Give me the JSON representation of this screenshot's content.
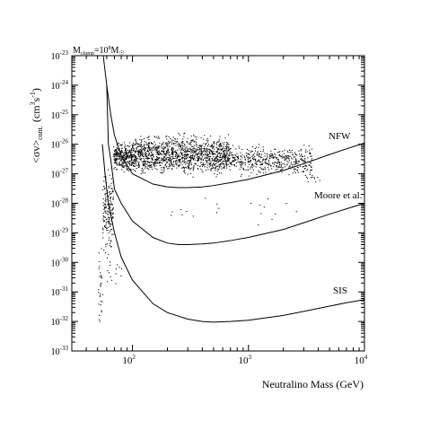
{
  "chart_data": {
    "type": "line",
    "mass_label_text": "M",
    "mass_label_sub": "clump",
    "mass_label_eq": "=10",
    "mass_label_exp": "8",
    "mass_label_unit": "M",
    "mass_label_unit_sub": "☉",
    "xlabel": "Neutralino Mass (GeV)",
    "ylabel_main": "<σv>",
    "ylabel_sub": "cont.",
    "ylabel_units": "(cm",
    "ylabel_units_exp1": "3",
    "ylabel_units_mid": "s",
    "ylabel_units_exp2": "-1",
    "ylabel_units_close": ")",
    "x_scale": "log",
    "y_scale": "log",
    "xlim": [
      30,
      10000
    ],
    "ylim": [
      1e-33,
      1e-23
    ],
    "x_ticks": [
      {
        "value": 100,
        "base": "10",
        "exp": "2"
      },
      {
        "value": 1000,
        "base": "10",
        "exp": "3"
      },
      {
        "value": 10000,
        "base": "10",
        "exp": "4"
      }
    ],
    "y_ticks": [
      {
        "value": 1e-23,
        "base": "10",
        "exp": "-23"
      },
      {
        "value": 1e-24,
        "base": "10",
        "exp": "-24"
      },
      {
        "value": 1e-25,
        "base": "10",
        "exp": "-25"
      },
      {
        "value": 1e-26,
        "base": "10",
        "exp": "-26"
      },
      {
        "value": 1e-27,
        "base": "10",
        "exp": "-27"
      },
      {
        "value": 1e-28,
        "base": "10",
        "exp": "-28"
      },
      {
        "value": 1e-29,
        "base": "10",
        "exp": "-29"
      },
      {
        "value": 1e-30,
        "base": "10",
        "exp": "-30"
      },
      {
        "value": 1e-31,
        "base": "10",
        "exp": "-31"
      },
      {
        "value": 1e-32,
        "base": "10",
        "exp": "-32"
      },
      {
        "value": 1e-33,
        "base": "10",
        "exp": "-33"
      }
    ],
    "series": [
      {
        "name": "NFW",
        "x": [
          56,
          60,
          65,
          70,
          80,
          100,
          150,
          200,
          250,
          300,
          400,
          500,
          700,
          1000,
          2000,
          3000,
          5000,
          7000,
          10000
        ],
        "y": [
          1e-23,
          1e-24,
          1e-25,
          2e-26,
          4e-27,
          1e-27,
          4.5e-28,
          3.6e-28,
          3.4e-28,
          3.4e-28,
          3.6e-28,
          4e-28,
          5e-28,
          6.5e-28,
          1.3e-27,
          2.2e-27,
          4.5e-27,
          7e-27,
          1.1e-26
        ]
      },
      {
        "name": "Moore et al.",
        "x": [
          60,
          62,
          65,
          70,
          80,
          100,
          150,
          200,
          250,
          300,
          400,
          500,
          700,
          1000,
          2000,
          3000,
          5000,
          7000,
          10000
        ],
        "y": [
          1e-24,
          1e-26,
          3e-27,
          3e-28,
          1e-28,
          2.5e-29,
          7e-30,
          4.5e-30,
          4e-30,
          4e-30,
          4.2e-30,
          4.5e-30,
          5.5e-30,
          7e-30,
          1.3e-29,
          2.2e-29,
          4.3e-29,
          6.5e-29,
          1e-28
        ]
      },
      {
        "name": "SIS",
        "x": [
          55,
          58,
          62,
          66,
          70,
          80,
          100,
          150,
          200,
          300,
          400,
          500,
          700,
          1000,
          2000,
          3000,
          5000,
          7000,
          10000
        ],
        "y": [
          1e-26,
          1e-27,
          1e-28,
          3e-29,
          1e-29,
          1.5e-30,
          2.5e-31,
          4e-32,
          2e-32,
          1.2e-32,
          1e-32,
          9.5e-33,
          1e-32,
          1.1e-32,
          1.6e-32,
          2.2e-32,
          3.3e-32,
          4.3e-32,
          5.5e-32
        ]
      }
    ],
    "scatter_regions": [
      {
        "x_min": 50,
        "x_max": 55,
        "y_log_min": -33.0,
        "y_log_max": -29.0,
        "count": 30
      },
      {
        "x_min": 55,
        "x_max": 68,
        "y_log_min": -30.0,
        "y_log_max": -26.5,
        "count": 170
      },
      {
        "x_min": 68,
        "x_max": 100,
        "y_log_min": -27.0,
        "y_log_max": -25.8,
        "count": 300
      },
      {
        "x_min": 100,
        "x_max": 700,
        "y_log_min": -27.2,
        "y_log_max": -25.5,
        "count": 1300
      },
      {
        "x_min": 700,
        "x_max": 3500,
        "y_log_min": -27.2,
        "y_log_max": -25.9,
        "count": 450
      },
      {
        "x_min": 3000,
        "x_max": 4200,
        "y_log_min": -27.4,
        "y_log_max": -26.9,
        "count": 12
      },
      {
        "x_min": 200,
        "x_max": 3000,
        "y_log_min": -28.8,
        "y_log_max": -27.6,
        "count": 20
      },
      {
        "x_min": 60,
        "x_max": 80,
        "y_log_min": -31.2,
        "y_log_max": -29.3,
        "count": 15
      }
    ]
  }
}
